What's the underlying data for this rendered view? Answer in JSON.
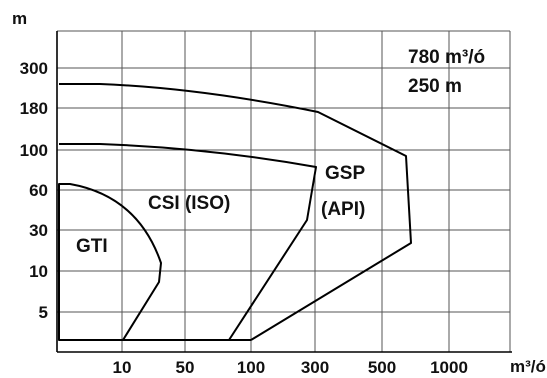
{
  "chart_data": {
    "type": "area",
    "title": "",
    "xlabel": "m³/ó",
    "ylabel": "m",
    "x_ticks": [
      "10",
      "50",
      "100",
      "300",
      "500",
      "1000"
    ],
    "y_ticks": [
      "300",
      "180",
      "100",
      "60",
      "30",
      "10",
      "5"
    ],
    "grid": true,
    "annotations": [
      "780 m³/ó",
      "250 m"
    ],
    "regions": [
      {
        "name": "GTI",
        "color": "#000000"
      },
      {
        "name": "CSI (ISO)",
        "color": "#000000"
      },
      {
        "name": "GSP (API)",
        "color": "#000000"
      }
    ]
  },
  "labels": {
    "gti": "GTI",
    "csi": "CSI (ISO)",
    "gsp_line1": "GSP",
    "gsp_line2": "(API)",
    "spec_flow": "780 m³/ó",
    "spec_head": "250 m"
  }
}
